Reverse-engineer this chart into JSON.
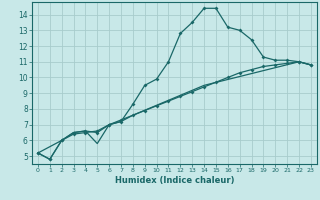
{
  "title": "",
  "xlabel": "Humidex (Indice chaleur)",
  "bg_color": "#c8e8e8",
  "grid_color": "#a8cccc",
  "line_color": "#1a6868",
  "xlim": [
    -0.5,
    23.5
  ],
  "ylim": [
    4.5,
    14.8
  ],
  "xticks": [
    0,
    1,
    2,
    3,
    4,
    5,
    6,
    7,
    8,
    9,
    10,
    11,
    12,
    13,
    14,
    15,
    16,
    17,
    18,
    19,
    20,
    21,
    22,
    23
  ],
  "yticks": [
    5,
    6,
    7,
    8,
    9,
    10,
    11,
    12,
    13,
    14
  ],
  "line1_x": [
    0,
    1,
    2,
    3,
    4,
    5,
    6,
    7,
    8,
    9,
    10,
    11,
    12,
    13,
    14,
    15,
    16,
    17,
    18,
    19,
    20,
    21,
    22,
    23
  ],
  "line1_y": [
    5.2,
    4.8,
    6.0,
    6.5,
    6.6,
    6.5,
    7.0,
    7.2,
    8.3,
    9.5,
    9.9,
    11.0,
    12.8,
    13.5,
    14.4,
    14.4,
    13.2,
    13.0,
    12.4,
    11.3,
    11.1,
    11.1,
    11.0,
    10.8
  ],
  "line2_x": [
    0,
    1,
    2,
    3,
    4,
    5,
    6,
    7,
    8,
    9,
    10,
    11,
    12,
    13,
    14,
    15,
    16,
    17,
    18,
    19,
    20,
    21,
    22,
    23
  ],
  "line2_y": [
    5.2,
    4.8,
    6.0,
    6.4,
    6.5,
    6.6,
    7.0,
    7.3,
    7.6,
    7.9,
    8.2,
    8.5,
    8.8,
    9.1,
    9.4,
    9.7,
    10.0,
    10.3,
    10.5,
    10.7,
    10.8,
    10.9,
    11.0,
    10.8
  ],
  "line3_x": [
    0,
    2,
    3,
    4,
    5,
    6,
    7,
    8,
    14,
    22,
    23
  ],
  "line3_y": [
    5.2,
    6.0,
    6.5,
    6.6,
    5.8,
    7.0,
    7.2,
    7.6,
    9.5,
    11.0,
    10.8
  ]
}
